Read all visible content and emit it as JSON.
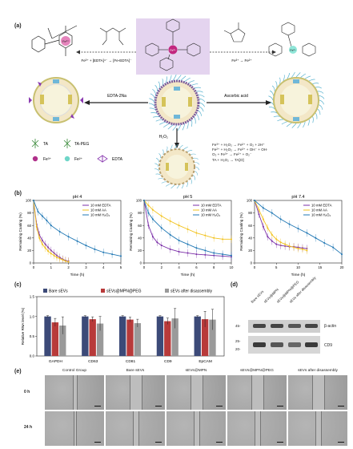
{
  "panels": {
    "a": "(a)",
    "b": "(b)",
    "c": "(c)",
    "d": "(d)",
    "e": "(e)"
  },
  "panel_a": {
    "reaction_left": "Fe³⁺ + [EDTA]⁴⁻ → [Fe-EDTA]⁻",
    "reaction_right": "Fe³⁺ → Fe²⁺",
    "center_metal": "Fe³⁺",
    "right_metal": "Fe²⁺",
    "arrow_left_label": "EDTA-2Na",
    "arrow_right_label": "Ascorbic acid",
    "arrow_down_label": "H₂O₂",
    "equations": [
      "Fe³⁺ + H₂O₂ → Fe²⁺ + O₂ + 2H⁺",
      "Fe²⁺ + H₂O₂ → Fe³⁺ + OH⁻ + OH·",
      "O₂ + Fe³⁺ → Fe²⁺ + O₂⁻",
      "TA + H₂O₂ → TA[O]"
    ],
    "legend": [
      {
        "label": "TA",
        "color": "#3a8a3a"
      },
      {
        "label": "TA-PEG",
        "color": "#3a8a3a"
      },
      {
        "label": "Fe³⁺",
        "color": "#b0308a"
      },
      {
        "label": "Fe²⁺",
        "color": "#6fd6c8"
      },
      {
        "label": "EDTA",
        "color": "#8a3ab0"
      }
    ]
  },
  "chart_data": [
    {
      "type": "line",
      "title": "pH 4",
      "xlabel": "Time (h)",
      "ylabel": "Remaining Coating (%)",
      "xlim": [
        0,
        5
      ],
      "ylim": [
        0,
        100
      ],
      "xticks": [
        0,
        1,
        2,
        3,
        4,
        5
      ],
      "yticks": [
        0,
        20,
        40,
        60,
        80,
        100
      ],
      "legend_position": "top-right",
      "series": [
        {
          "name": "10 mM EDTA",
          "color": "#7b2fa8",
          "x": [
            0,
            0.17,
            0.33,
            0.5,
            0.67,
            0.83,
            1,
            1.17,
            1.33,
            1.5,
            1.67,
            1.83,
            2
          ],
          "y": [
            100,
            62,
            45,
            36,
            30,
            25,
            20,
            16,
            12,
            9,
            6,
            4,
            3
          ]
        },
        {
          "name": "10 mM AA",
          "color": "#f2c21b",
          "x": [
            0,
            0.17,
            0.33,
            0.5,
            0.67,
            0.83,
            1,
            1.17,
            1.33,
            1.5,
            1.67,
            1.83,
            2
          ],
          "y": [
            100,
            58,
            40,
            30,
            24,
            19,
            15,
            12,
            9,
            7,
            5,
            3,
            2
          ]
        },
        {
          "name": "10 mM H₂O₂",
          "color": "#1f77b4",
          "x": [
            0,
            0.25,
            0.5,
            0.75,
            1,
            1.5,
            2,
            2.5,
            3,
            3.5,
            4,
            4.5,
            5
          ],
          "y": [
            100,
            82,
            75,
            68,
            60,
            50,
            42,
            35,
            28,
            22,
            17,
            14,
            11
          ]
        }
      ]
    },
    {
      "type": "line",
      "title": "pH 5",
      "xlabel": "Time (h)",
      "ylabel": "Remaining Coating (%)",
      "xlim": [
        0,
        10
      ],
      "ylim": [
        0,
        100
      ],
      "xticks": [
        0,
        2,
        4,
        6,
        8,
        10
      ],
      "yticks": [
        0,
        20,
        40,
        60,
        80,
        100
      ],
      "legend_position": "top-right",
      "series": [
        {
          "name": "10 mM EDTA",
          "color": "#7b2fa8",
          "x": [
            0,
            0.5,
            1,
            1.5,
            2,
            3,
            4,
            5,
            6,
            7,
            8,
            9,
            10
          ],
          "y": [
            100,
            60,
            42,
            33,
            28,
            22,
            18,
            16,
            14,
            13,
            12,
            11,
            10
          ]
        },
        {
          "name": "10 mM AA",
          "color": "#f2c21b",
          "x": [
            0,
            0.5,
            1,
            2,
            3,
            4,
            5,
            6,
            7,
            8,
            9,
            10
          ],
          "y": [
            100,
            92,
            85,
            75,
            67,
            60,
            54,
            48,
            44,
            40,
            38,
            38
          ]
        },
        {
          "name": "10 mM H₂O₂",
          "color": "#1f77b4",
          "x": [
            0,
            0.5,
            1,
            2,
            3,
            4,
            5,
            6,
            7,
            8,
            9,
            10
          ],
          "y": [
            100,
            80,
            70,
            56,
            45,
            36,
            30,
            24,
            20,
            16,
            14,
            12
          ]
        }
      ]
    },
    {
      "type": "line",
      "title": "pH 7.4",
      "xlabel": "Time (h)",
      "ylabel": "Remaining Coating (%)",
      "xlim": [
        0,
        20
      ],
      "ylim": [
        0,
        100
      ],
      "xticks": [
        0,
        5,
        10,
        15,
        20
      ],
      "yticks": [
        0,
        20,
        40,
        60,
        80,
        100
      ],
      "legend_position": "top-right",
      "series": [
        {
          "name": "10 mM EDTA",
          "color": "#7b2fa8",
          "x": [
            0,
            1,
            2,
            3,
            4,
            5,
            6,
            7,
            8,
            9,
            10,
            11,
            12
          ],
          "y": [
            100,
            78,
            58,
            42,
            35,
            30,
            28,
            27,
            26,
            26,
            25,
            24,
            23
          ]
        },
        {
          "name": "10 mM AA",
          "color": "#f2c21b",
          "x": [
            0,
            1,
            2,
            3,
            4,
            5,
            6,
            7,
            8,
            9,
            10,
            11,
            12
          ],
          "y": [
            100,
            85,
            70,
            56,
            45,
            38,
            33,
            30,
            27,
            25,
            23,
            22,
            20
          ]
        },
        {
          "name": "10 mM H₂O₂",
          "color": "#1f77b4",
          "x": [
            0,
            2,
            4,
            6,
            8,
            10,
            12,
            14,
            16,
            18,
            20
          ],
          "y": [
            100,
            88,
            80,
            70,
            62,
            55,
            48,
            40,
            32,
            25,
            14
          ]
        }
      ]
    },
    {
      "type": "bar",
      "title": "",
      "xlabel": "",
      "ylabel": "Relative RNA level (%)",
      "ylim": [
        0,
        1.5
      ],
      "yticks": [
        0.0,
        0.5,
        1.0,
        1.5
      ],
      "categories": [
        "GAPDH",
        "CD63",
        "CD81",
        "CD9",
        "EpCAM"
      ],
      "legend_position": "top",
      "series": [
        {
          "name": "Bare sEVs",
          "color": "#3c4a78",
          "values": [
            1.0,
            1.0,
            1.0,
            1.0,
            1.0
          ],
          "errors": [
            0.02,
            0.02,
            0.02,
            0.02,
            0.02
          ]
        },
        {
          "name": "sEVs@MPN@PEG",
          "color": "#b83a3a",
          "values": [
            0.85,
            0.93,
            0.92,
            0.88,
            0.93
          ],
          "errors": [
            0.1,
            0.06,
            0.06,
            0.08,
            0.2
          ]
        },
        {
          "name": "sEVs after disassembly",
          "color": "#9a9a9a",
          "values": [
            0.77,
            0.82,
            0.83,
            0.95,
            0.92
          ],
          "errors": [
            0.22,
            0.18,
            0.1,
            0.25,
            0.26
          ]
        }
      ]
    }
  ],
  "panel_d": {
    "lanes": [
      "Bare sEVs",
      "sEVs@MPN",
      "sEVs@MPN@PEG",
      "sEVs after disassembly"
    ],
    "markers": [
      "45-",
      "25-",
      "20-"
    ],
    "bands": [
      "β-actin",
      "CD9"
    ]
  },
  "panel_e": {
    "columns": [
      "Control Group",
      "Bare sEVs",
      "sEVs@MPN",
      "sEVs@MPN@PEG",
      "sEVs after disassembly"
    ],
    "rows": [
      "0 h",
      "24 h"
    ]
  }
}
